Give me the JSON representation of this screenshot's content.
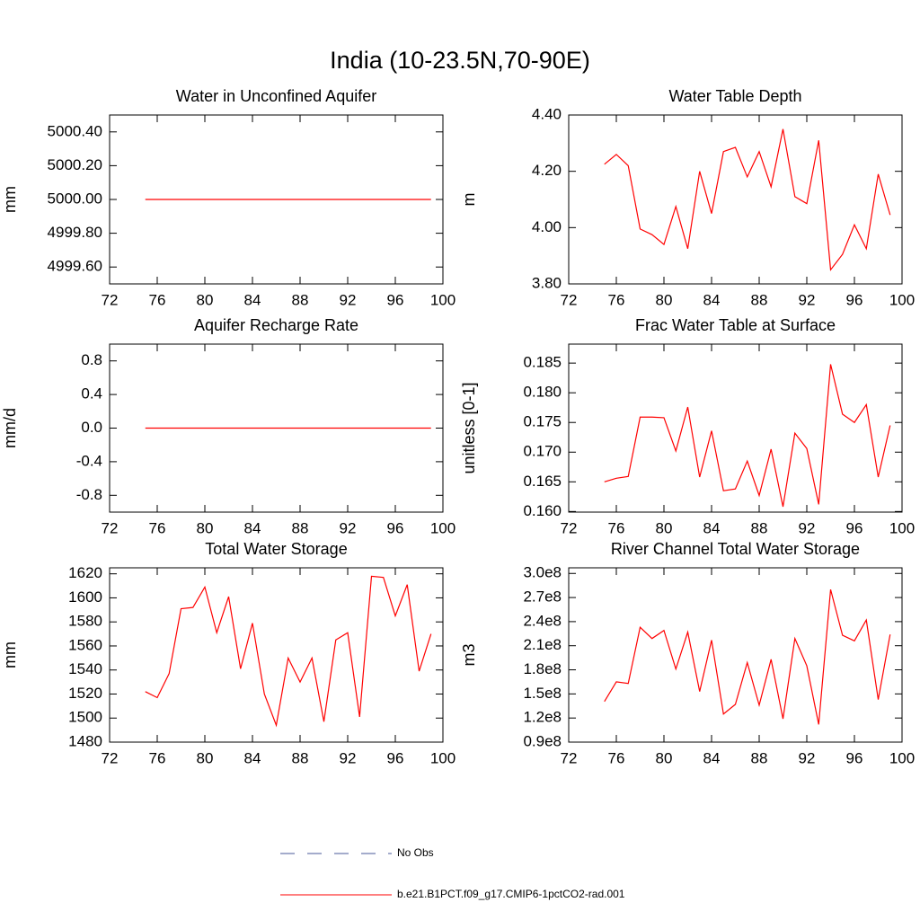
{
  "title": "India (10-23.5N,70-90E)",
  "legend": [
    {
      "name": "No Obs",
      "color": "#4a5a9a",
      "dashed": true
    },
    {
      "name": "b.e21.B1PCT.f09_g17.CMIP6-1pctCO2-rad.001",
      "color": "#ff0000",
      "dashed": false
    }
  ],
  "chart_data": [
    {
      "type": "line",
      "title": "Water in Unconfined Aquifer",
      "ylabel": "mm",
      "color": "#ff0000",
      "x": [
        75,
        76,
        77,
        78,
        79,
        80,
        81,
        82,
        83,
        84,
        85,
        86,
        87,
        88,
        89,
        90,
        91,
        92,
        93,
        94,
        95,
        96,
        97,
        98,
        99
      ],
      "values": [
        5000,
        5000,
        5000,
        5000,
        5000,
        5000,
        5000,
        5000,
        5000,
        5000,
        5000,
        5000,
        5000,
        5000,
        5000,
        5000,
        5000,
        5000,
        5000,
        5000,
        5000,
        5000,
        5000,
        5000,
        5000
      ],
      "xlim": [
        72,
        100
      ],
      "xticks": [
        72,
        76,
        80,
        84,
        88,
        92,
        96,
        100
      ],
      "ylim": [
        4999.5,
        5000.5
      ],
      "yticks": [
        {
          "value": 4999.6,
          "label": "4999.60"
        },
        {
          "value": 4999.8,
          "label": "4999.80"
        },
        {
          "value": 5000,
          "label": "5000.00"
        },
        {
          "value": 5000.2,
          "label": "5000.20"
        },
        {
          "value": 5000.4,
          "label": "5000.40"
        }
      ]
    },
    {
      "type": "line",
      "title": "Water Table Depth",
      "ylabel": "m",
      "color": "#ff0000",
      "x": [
        75,
        76,
        77,
        78,
        79,
        80,
        81,
        82,
        83,
        84,
        85,
        86,
        87,
        88,
        89,
        90,
        91,
        92,
        93,
        94,
        95,
        96,
        97,
        98,
        99
      ],
      "values": [
        4.225,
        4.26,
        4.22,
        3.995,
        3.975,
        3.94,
        4.075,
        3.925,
        4.2,
        4.05,
        4.27,
        4.285,
        4.18,
        4.27,
        4.145,
        4.35,
        4.11,
        4.085,
        4.31,
        3.85,
        3.905,
        4.01,
        3.925,
        4.19,
        4.045
      ],
      "xlim": [
        72,
        100
      ],
      "xticks": [
        72,
        76,
        80,
        84,
        88,
        92,
        96,
        100
      ],
      "ylim": [
        3.8,
        4.4
      ],
      "yticks": [
        {
          "value": 3.8,
          "label": "3.80"
        },
        {
          "value": 4.0,
          "label": "4.00"
        },
        {
          "value": 4.2,
          "label": "4.20"
        },
        {
          "value": 4.4,
          "label": "4.40"
        }
      ]
    },
    {
      "type": "line",
      "title": "Aquifer Recharge Rate",
      "ylabel": "mm/d",
      "color": "#ff0000",
      "x": [
        75,
        76,
        77,
        78,
        79,
        80,
        81,
        82,
        83,
        84,
        85,
        86,
        87,
        88,
        89,
        90,
        91,
        92,
        93,
        94,
        95,
        96,
        97,
        98,
        99
      ],
      "values": [
        0,
        0,
        0,
        0,
        0,
        0,
        0,
        0,
        0,
        0,
        0,
        0,
        0,
        0,
        0,
        0,
        0,
        0,
        0,
        0,
        0,
        0,
        0,
        0,
        0
      ],
      "xlim": [
        72,
        100
      ],
      "xticks": [
        72,
        76,
        80,
        84,
        88,
        92,
        96,
        100
      ],
      "ylim": [
        -1,
        1
      ],
      "yticks": [
        -0.8,
        -0.4,
        {
          "value": 0,
          "label": "0.0"
        },
        0.4,
        0.8
      ]
    },
    {
      "type": "line",
      "title": "Frac Water Table at Surface",
      "ylabel": "unitless [0-1]",
      "color": "#ff0000",
      "x": [
        75,
        76,
        77,
        78,
        79,
        80,
        81,
        82,
        83,
        84,
        85,
        86,
        87,
        88,
        89,
        90,
        91,
        92,
        93,
        94,
        95,
        96,
        97,
        98,
        99
      ],
      "values": [
        0.165,
        0.1656,
        0.1659,
        0.1759,
        0.1759,
        0.1758,
        0.1702,
        0.1776,
        0.1658,
        0.1736,
        0.1635,
        0.1638,
        0.1685,
        0.1627,
        0.1705,
        0.1608,
        0.1732,
        0.1706,
        0.1612,
        0.1848,
        0.1764,
        0.175,
        0.178,
        0.1658,
        0.1745
      ],
      "xlim": [
        72,
        100
      ],
      "xticks": [
        72,
        76,
        80,
        84,
        88,
        92,
        96,
        100
      ],
      "ylim": [
        0.1599,
        0.1882
      ],
      "yticks": [
        {
          "value": 0.16,
          "label": "0.160"
        },
        0.165,
        {
          "value": 0.17,
          "label": "0.170"
        },
        0.175,
        {
          "value": 0.18,
          "label": "0.180"
        },
        0.185
      ]
    },
    {
      "type": "line",
      "title": "Total Water Storage",
      "ylabel": "mm",
      "color": "#ff0000",
      "x": [
        75,
        76,
        77,
        78,
        79,
        80,
        81,
        82,
        83,
        84,
        85,
        86,
        87,
        88,
        89,
        90,
        91,
        92,
        93,
        94,
        95,
        96,
        97,
        98,
        99
      ],
      "values": [
        1522,
        1517,
        1537,
        1591,
        1592,
        1609,
        1571,
        1601,
        1541,
        1579,
        1520,
        1494,
        1550,
        1530,
        1550,
        1497,
        1565,
        1571,
        1501,
        1618,
        1617,
        1585,
        1611,
        1539,
        1570
      ],
      "xlim": [
        72,
        100
      ],
      "xticks": [
        72,
        76,
        80,
        84,
        88,
        92,
        96,
        100
      ],
      "ylim": [
        1480,
        1625
      ],
      "yticks": [
        1480,
        1500,
        1520,
        1540,
        1560,
        1580,
        1600,
        1620
      ]
    },
    {
      "type": "line",
      "title": "River Channel Total Water Storage",
      "ylabel": "m3",
      "color": "#ff0000",
      "x": [
        75,
        76,
        77,
        78,
        79,
        80,
        81,
        82,
        83,
        84,
        85,
        86,
        87,
        88,
        89,
        90,
        91,
        92,
        93,
        94,
        95,
        96,
        97,
        98,
        99
      ],
      "values": [
        140500000,
        165000000,
        163000000,
        233000000,
        219000000,
        229000000,
        181000000,
        227000000,
        153000000,
        217000000,
        125000000,
        137000000,
        189000000,
        136000000,
        193000000,
        119000000,
        219000000,
        185000000,
        112000000,
        280000000,
        223000000,
        216000000,
        242000000,
        143000000,
        224000000
      ],
      "xlim": [
        72,
        100
      ],
      "xticks": [
        72,
        76,
        80,
        84,
        88,
        92,
        96,
        100
      ],
      "ylim": [
        90000000,
        307000000
      ],
      "yticks": [
        {
          "value": 90000000,
          "label": "0.9e8"
        },
        {
          "value": 120000000,
          "label": "1.2e8"
        },
        {
          "value": 150000000,
          "label": "1.5e8"
        },
        {
          "value": 180000000,
          "label": "1.8e8"
        },
        {
          "value": 210000000,
          "label": "2.1e8"
        },
        {
          "value": 240000000,
          "label": "2.4e8"
        },
        {
          "value": 270000000,
          "label": "2.7e8"
        },
        {
          "value": 300000000,
          "label": "3.0e8"
        }
      ]
    }
  ]
}
